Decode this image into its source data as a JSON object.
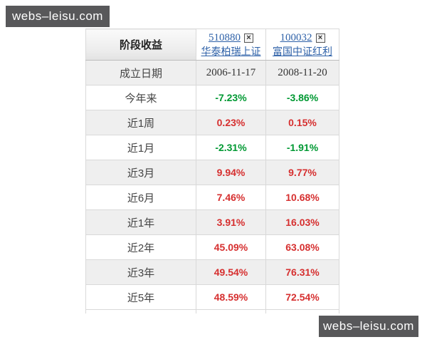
{
  "watermark": {
    "text": "webs–leisu.com"
  },
  "colors": {
    "positive": "#d62f2f",
    "negative": "#009933",
    "link": "#2e61a8"
  },
  "table": {
    "corner_label": "阶段收益",
    "close_glyph": "×",
    "funds": [
      {
        "code": "510880",
        "name": "华泰柏瑞上证"
      },
      {
        "code": "100032",
        "name": "富国中证红利"
      }
    ],
    "rows": [
      {
        "label": "成立日期",
        "values": [
          "2006-11-17",
          "2008-11-20"
        ],
        "kind": "date"
      },
      {
        "label": "今年来",
        "values": [
          "-7.23%",
          "-3.86%"
        ],
        "kind": "pct"
      },
      {
        "label": "近1周",
        "values": [
          "0.23%",
          "0.15%"
        ],
        "kind": "pct"
      },
      {
        "label": "近1月",
        "values": [
          "-2.31%",
          "-1.91%"
        ],
        "kind": "pct"
      },
      {
        "label": "近3月",
        "values": [
          "9.94%",
          "9.77%"
        ],
        "kind": "pct"
      },
      {
        "label": "近6月",
        "values": [
          "7.46%",
          "10.68%"
        ],
        "kind": "pct"
      },
      {
        "label": "近1年",
        "values": [
          "3.91%",
          "16.03%"
        ],
        "kind": "pct"
      },
      {
        "label": "近2年",
        "values": [
          "45.09%",
          "63.08%"
        ],
        "kind": "pct"
      },
      {
        "label": "近3年",
        "values": [
          "49.54%",
          "76.31%"
        ],
        "kind": "pct"
      },
      {
        "label": "近5年",
        "values": [
          "48.59%",
          "72.54%"
        ],
        "kind": "pct"
      }
    ]
  }
}
